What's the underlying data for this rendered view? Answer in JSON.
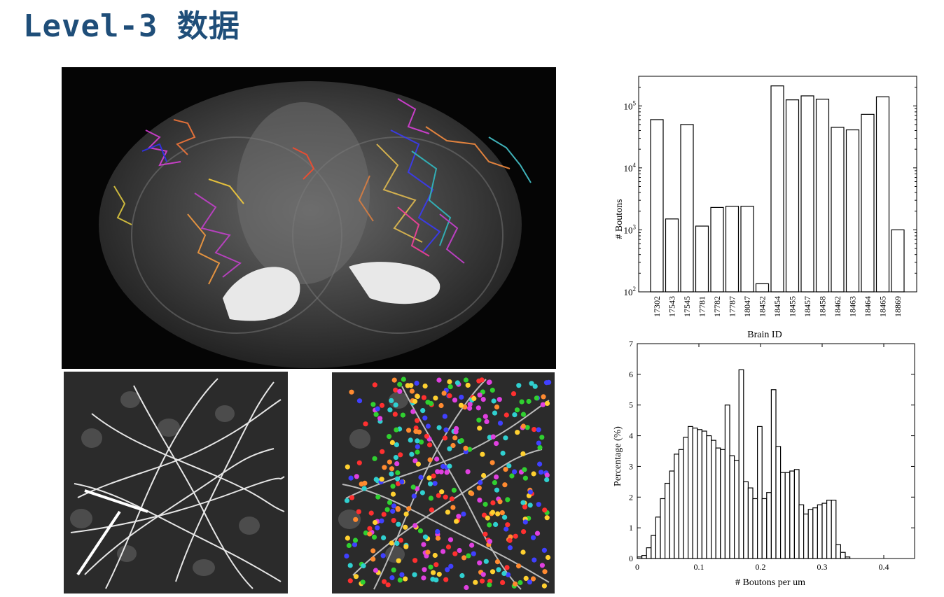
{
  "slide": {
    "title": "Level-3 数据",
    "colors": {
      "title": "#1f4e79",
      "bar_fill": "#ffffff",
      "bar_stroke": "#000000",
      "panel_bg": "#050505"
    }
  },
  "images": {
    "brain": {
      "description_icon": "brain-section-image"
    },
    "neuron": {
      "description_icon": "neuron-axon-image"
    },
    "boutons": {
      "description_icon": "bouton-marked-image"
    }
  },
  "chart_data": [
    {
      "type": "bar",
      "xlabel": "Brain ID",
      "ylabel": "# Boutons",
      "yscale": "log",
      "ylim": [
        100,
        300000
      ],
      "yticks": [
        {
          "v": 100,
          "base": "10",
          "exp": "2"
        },
        {
          "v": 1000,
          "base": "10",
          "exp": "3"
        },
        {
          "v": 10000,
          "base": "10",
          "exp": "4"
        },
        {
          "v": 100000,
          "base": "10",
          "exp": "5"
        }
      ],
      "categories": [
        "17302",
        "17543",
        "17545",
        "17781",
        "17782",
        "17787",
        "18047",
        "18452",
        "18454",
        "18455",
        "18457",
        "18458",
        "18462",
        "18463",
        "18464",
        "18465",
        "18869"
      ],
      "values": [
        60000,
        1500,
        50000,
        1150,
        2300,
        2400,
        2400,
        135,
        210000,
        125000,
        145000,
        128000,
        45000,
        41000,
        73000,
        140000,
        1000
      ],
      "grid": false
    },
    {
      "type": "bar",
      "subtype": "histogram",
      "xlabel": "# Boutons per um",
      "ylabel": "Percentage (%)",
      "xlim": [
        0,
        0.45
      ],
      "ylim": [
        0,
        7
      ],
      "xticks": [
        "0",
        "0.1",
        "0.2",
        "0.3",
        "0.4"
      ],
      "yticks": [
        "0",
        "1",
        "2",
        "3",
        "4",
        "5",
        "6",
        "7"
      ],
      "bin_width": 0.0075,
      "x": [
        0.0,
        0.0075,
        0.015,
        0.0225,
        0.03,
        0.0375,
        0.045,
        0.0525,
        0.06,
        0.0675,
        0.075,
        0.0825,
        0.09,
        0.0975,
        0.105,
        0.1125,
        0.12,
        0.1275,
        0.135,
        0.1425,
        0.15,
        0.1575,
        0.165,
        0.1725,
        0.18,
        0.1875,
        0.195,
        0.2025,
        0.21,
        0.2175,
        0.225,
        0.2325,
        0.24,
        0.2475,
        0.255,
        0.2625,
        0.27,
        0.2775,
        0.285,
        0.2925,
        0.3,
        0.3075,
        0.315,
        0.3225,
        0.33,
        0.3375,
        0.345,
        0.3525,
        0.36,
        0.3675,
        0.375,
        0.3825,
        0.39,
        0.3975
      ],
      "values": [
        0.05,
        0.1,
        0.35,
        0.75,
        1.35,
        1.95,
        2.45,
        2.85,
        3.4,
        3.55,
        3.95,
        4.3,
        4.25,
        4.2,
        4.15,
        4.0,
        3.85,
        3.6,
        3.55,
        5.0,
        3.35,
        3.2,
        6.15,
        2.5,
        2.3,
        1.95,
        4.3,
        1.95,
        2.15,
        5.5,
        3.65,
        2.8,
        2.8,
        2.85,
        2.9,
        1.75,
        1.45,
        1.6,
        1.65,
        1.75,
        1.8,
        1.9,
        1.9,
        0.45,
        0.2,
        0.05,
        0,
        0,
        0,
        0,
        0,
        0,
        0,
        0
      ],
      "grid": false
    }
  ]
}
